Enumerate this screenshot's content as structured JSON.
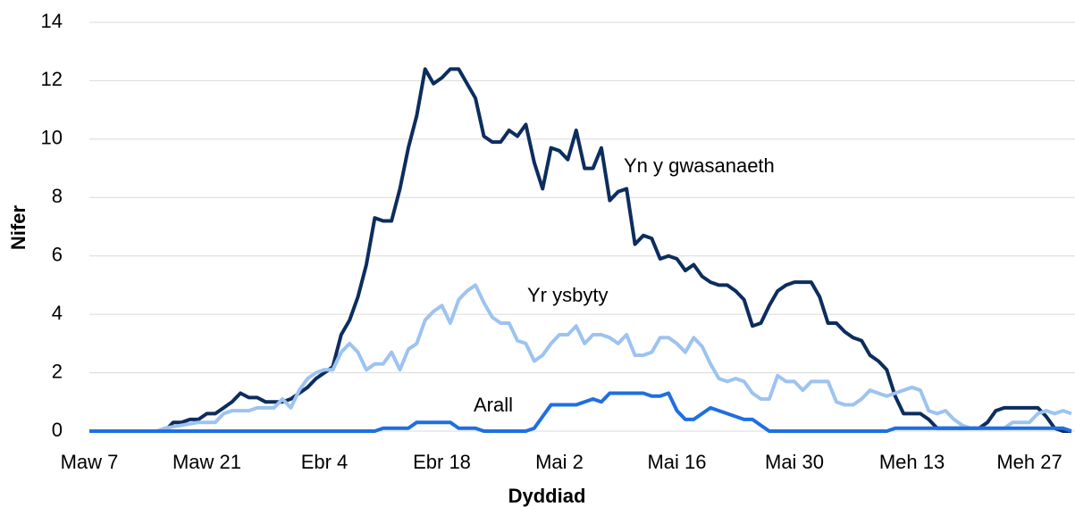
{
  "chart_data": {
    "type": "line",
    "x_label": "Dyddiad",
    "y_label": "Nifer",
    "categories": [
      "Maw 7",
      null,
      null,
      null,
      null,
      null,
      null,
      null,
      null,
      null,
      null,
      null,
      null,
      null,
      "Maw 21",
      null,
      null,
      null,
      null,
      null,
      null,
      null,
      null,
      null,
      null,
      null,
      null,
      null,
      "Ebr 4",
      null,
      null,
      null,
      null,
      null,
      null,
      null,
      null,
      null,
      null,
      null,
      null,
      null,
      "Ebr 18",
      null,
      null,
      null,
      null,
      null,
      null,
      null,
      null,
      null,
      null,
      null,
      null,
      null,
      "Mai 2",
      null,
      null,
      null,
      null,
      null,
      null,
      null,
      null,
      null,
      null,
      null,
      null,
      null,
      "Mai 16",
      null,
      null,
      null,
      null,
      null,
      null,
      null,
      null,
      null,
      null,
      null,
      null,
      null,
      "Mai 30",
      null,
      null,
      null,
      null,
      null,
      null,
      null,
      null,
      null,
      null,
      null,
      null,
      null,
      "Meh 13",
      null,
      null,
      null,
      null,
      null,
      null,
      null,
      null,
      null,
      null,
      null,
      null,
      null,
      "Meh 27",
      null,
      null,
      null,
      null,
      null
    ],
    "series": [
      {
        "name": "Yn y gwasanaeth",
        "color": "#0c2d5e",
        "values": [
          0,
          0,
          0,
          0,
          0,
          0,
          0,
          0,
          0,
          0,
          0.3,
          0.3,
          0.4,
          0.4,
          0.6,
          0.6,
          0.8,
          1.0,
          1.3,
          1.15,
          1.15,
          1.0,
          1.0,
          1.0,
          1.1,
          1.3,
          1.5,
          1.8,
          2.0,
          2.2,
          3.3,
          3.8,
          4.6,
          5.7,
          7.3,
          7.2,
          7.2,
          8.3,
          9.7,
          10.8,
          12.4,
          11.9,
          12.1,
          12.4,
          12.4,
          11.9,
          11.4,
          10.1,
          9.9,
          9.9,
          10.3,
          10.1,
          10.5,
          9.2,
          8.3,
          9.7,
          9.6,
          9.3,
          10.3,
          9.0,
          9.0,
          9.7,
          7.9,
          8.2,
          8.3,
          6.4,
          6.7,
          6.6,
          5.9,
          6.0,
          5.9,
          5.5,
          5.7,
          5.3,
          5.1,
          5.0,
          5.0,
          4.8,
          4.5,
          3.6,
          3.7,
          4.3,
          4.8,
          5.0,
          5.1,
          5.1,
          5.1,
          4.6,
          3.7,
          3.7,
          3.4,
          3.2,
          3.1,
          2.6,
          2.4,
          2.1,
          1.2,
          0.6,
          0.6,
          0.6,
          0.4,
          0.1,
          0.1,
          0.1,
          0.1,
          0.1,
          0.1,
          0.3,
          0.7,
          0.8,
          0.8,
          0.8,
          0.8,
          0.8,
          0.5,
          0.1,
          0,
          0
        ]
      },
      {
        "name": "Yr ysbyty",
        "color": "#9dc3f0",
        "values": [
          0,
          0,
          0,
          0,
          0,
          0,
          0,
          0,
          0,
          0.1,
          0.15,
          0.2,
          0.25,
          0.3,
          0.3,
          0.3,
          0.6,
          0.7,
          0.7,
          0.7,
          0.8,
          0.8,
          0.8,
          1.1,
          0.8,
          1.4,
          1.8,
          2.0,
          2.1,
          2.1,
          2.7,
          3.0,
          2.7,
          2.1,
          2.3,
          2.3,
          2.7,
          2.1,
          2.8,
          3.0,
          3.8,
          4.1,
          4.3,
          3.7,
          4.5,
          4.8,
          5.0,
          4.4,
          3.9,
          3.7,
          3.7,
          3.1,
          3.0,
          2.4,
          2.6,
          3.0,
          3.3,
          3.3,
          3.6,
          3.0,
          3.3,
          3.3,
          3.2,
          3.0,
          3.3,
          2.6,
          2.6,
          2.7,
          3.2,
          3.2,
          3.0,
          2.7,
          3.2,
          2.9,
          2.3,
          1.8,
          1.7,
          1.8,
          1.7,
          1.3,
          1.1,
          1.1,
          1.9,
          1.7,
          1.7,
          1.4,
          1.7,
          1.7,
          1.7,
          1.0,
          0.9,
          0.9,
          1.1,
          1.4,
          1.3,
          1.2,
          1.3,
          1.4,
          1.5,
          1.4,
          0.7,
          0.6,
          0.7,
          0.4,
          0.2,
          0.1,
          0.1,
          0.1,
          0.1,
          0.1,
          0.3,
          0.3,
          0.3,
          0.6,
          0.7,
          0.6,
          0.7,
          0.6
        ]
      },
      {
        "name": "Arall",
        "color": "#1f6fe0",
        "values": [
          0,
          0,
          0,
          0,
          0,
          0,
          0,
          0,
          0,
          0,
          0,
          0,
          0,
          0,
          0,
          0,
          0,
          0,
          0,
          0,
          0,
          0,
          0,
          0,
          0,
          0,
          0,
          0,
          0,
          0,
          0,
          0,
          0,
          0,
          0,
          0.1,
          0.1,
          0.1,
          0.1,
          0.3,
          0.3,
          0.3,
          0.3,
          0.3,
          0.1,
          0.1,
          0.1,
          0,
          0,
          0,
          0,
          0,
          0,
          0.1,
          0.5,
          0.9,
          0.9,
          0.9,
          0.9,
          1.0,
          1.1,
          1.0,
          1.3,
          1.3,
          1.3,
          1.3,
          1.3,
          1.2,
          1.2,
          1.3,
          0.7,
          0.4,
          0.4,
          0.6,
          0.8,
          0.7,
          0.6,
          0.5,
          0.4,
          0.4,
          0.2,
          0,
          0,
          0,
          0,
          0,
          0,
          0,
          0,
          0,
          0,
          0,
          0,
          0,
          0,
          0,
          0.1,
          0.1,
          0.1,
          0.1,
          0.1,
          0.1,
          0.1,
          0.1,
          0.1,
          0.1,
          0.1,
          0.1,
          0.1,
          0.1,
          0.1,
          0.1,
          0.1,
          0.1,
          0.1,
          0.1,
          0.1,
          0
        ]
      }
    ],
    "ylim": [
      0,
      14
    ],
    "yticks": [
      0,
      2,
      4,
      6,
      8,
      10,
      12,
      14
    ],
    "grid": true
  }
}
